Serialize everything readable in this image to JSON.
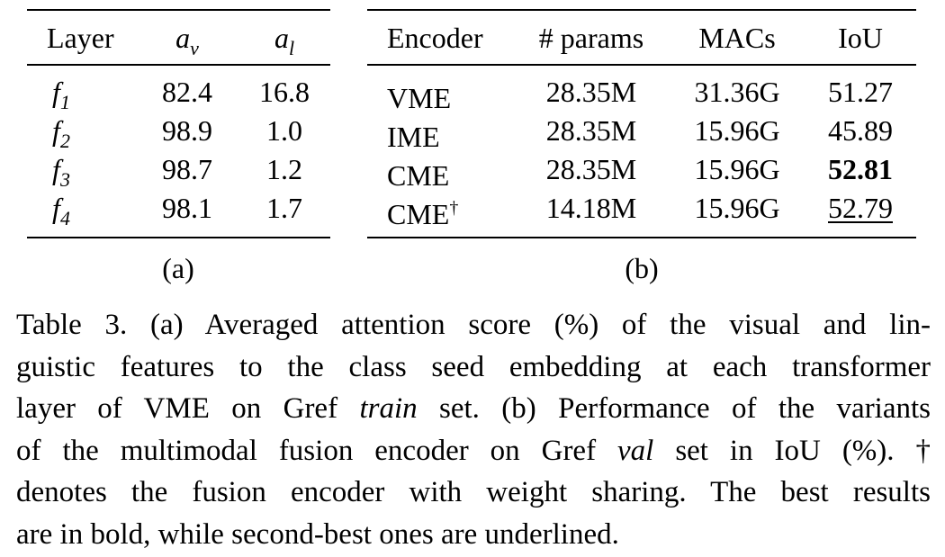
{
  "table_a": {
    "headers": [
      "Layer",
      "a",
      "v",
      "a",
      "l"
    ],
    "rows": [
      {
        "layer": "f",
        "sub": "1",
        "av": "82.4",
        "al": "16.8"
      },
      {
        "layer": "f",
        "sub": "2",
        "av": "98.9",
        "al": "1.0"
      },
      {
        "layer": "f",
        "sub": "3",
        "av": "98.7",
        "al": "1.2"
      },
      {
        "layer": "f",
        "sub": "4",
        "av": "98.1",
        "al": "1.7"
      }
    ],
    "label": "(a)"
  },
  "table_b": {
    "headers": [
      "Encoder",
      "# params",
      "MACs",
      "IoU"
    ],
    "rows": [
      {
        "encoder": "VME",
        "dagger": "",
        "params": "28.35M",
        "macs": "31.36G",
        "iou": "51.27"
      },
      {
        "encoder": "IME",
        "dagger": "",
        "params": "28.35M",
        "macs": "15.96G",
        "iou": "45.89"
      },
      {
        "encoder": "CME",
        "dagger": "",
        "params": "28.35M",
        "macs": "15.96G",
        "iou": "52.81"
      },
      {
        "encoder": "CME",
        "dagger": "†",
        "params": "14.18M",
        "macs": "15.96G",
        "iou": "52.79"
      }
    ],
    "label": "(b)"
  },
  "caption": {
    "l1": "Table 3.  (a) Averaged attention score (%) of the visual and lin-",
    "l2": "guistic features to the class seed embedding at each transformer",
    "l3a": "layer of VME on Gref ",
    "l3b": "train",
    "l3c": " set.  (b) Performance of the variants",
    "l4a": "of the multimodal fusion encoder on Gref ",
    "l4b": "val",
    "l4c": " set in IoU (%).  †",
    "l5": "denotes the fusion encoder with weight sharing.  The best results",
    "l6": "are in bold, while second-best ones are underlined."
  }
}
